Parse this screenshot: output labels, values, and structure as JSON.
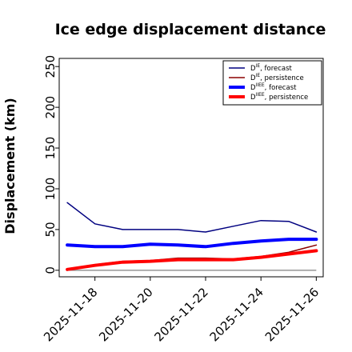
{
  "chart_data": {
    "type": "line",
    "title": "Ice edge displacement distance",
    "xlabel": "",
    "ylabel": "Displacement (km)",
    "ylim": [
      -8,
      260
    ],
    "yticks": [
      0,
      50,
      100,
      150,
      200,
      250
    ],
    "xlim": [
      "2025-11-16 17:00",
      "2025-11-26 06:00"
    ],
    "xticks": [
      "2025-11-18",
      "2025-11-20",
      "2025-11-22",
      "2025-11-24",
      "2025-11-26"
    ],
    "xtick_colors": [
      "#228B22",
      "#000000",
      "#000000",
      "#000000",
      "#000000"
    ],
    "grid": false,
    "legend_position": "top-right",
    "x": [
      "2025-11-17",
      "2025-11-18",
      "2025-11-19",
      "2025-11-20",
      "2025-11-21",
      "2025-11-22",
      "2025-11-23",
      "2025-11-24",
      "2025-11-25",
      "2025-11-26"
    ],
    "baseline": 0,
    "series": [
      {
        "name": "D^IE, forecast",
        "label_main": "D",
        "label_sup": "IE",
        "label_rest": ", forecast",
        "color": "#000080",
        "linewidth": 1.5,
        "values": [
          83,
          57,
          50,
          50,
          50,
          47,
          54,
          61,
          60,
          47
        ]
      },
      {
        "name": "D^IE, persistence",
        "label_main": "D",
        "label_sup": "IE",
        "label_rest": ", persistence",
        "color": "#8B0000",
        "linewidth": 1.5,
        "values": [
          0,
          7,
          11,
          12,
          15,
          15,
          14,
          17,
          22,
          31
        ]
      },
      {
        "name": "D^IIEE, forecast",
        "label_main": "D",
        "label_sup": "IIEE",
        "label_rest": ", forecast",
        "color": "#0000ff",
        "linewidth": 4,
        "values": [
          31,
          29,
          29,
          32,
          31,
          29,
          33,
          36,
          38,
          38
        ]
      },
      {
        "name": "D^IIEE, persistence",
        "label_main": "D",
        "label_sup": "IIEE",
        "label_rest": ", persistence",
        "color": "#ff0000",
        "linewidth": 4,
        "values": [
          1,
          6,
          10,
          11,
          13,
          13,
          13,
          16,
          20,
          24
        ]
      }
    ]
  }
}
